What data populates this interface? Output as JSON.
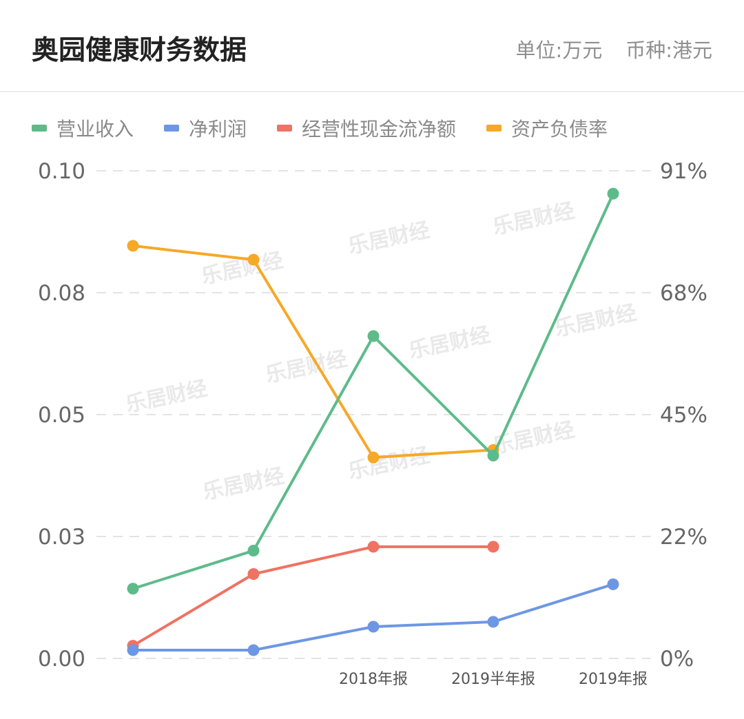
{
  "header": {
    "title": "奥园健康财务数据",
    "unit": "单位:万元",
    "currency": "币种:港元"
  },
  "legend": [
    {
      "label": "营业收入",
      "color": "#5dbb8a"
    },
    {
      "label": "净利润",
      "color": "#6d97e4"
    },
    {
      "label": "经营性现金流净额",
      "color": "#ef7263"
    },
    {
      "label": "资产负债率",
      "color": "#f6a827"
    }
  ],
  "watermark_text": "乐居财经",
  "chart_data": {
    "type": "line",
    "categories": [
      "",
      "",
      "2018年报",
      "2019半年报",
      "2019年报"
    ],
    "left_axis": {
      "ticks": [
        "0.10",
        "0.08",
        "0.05",
        "0.03",
        "0.00"
      ],
      "ylim": [
        0,
        0.1
      ]
    },
    "right_axis": {
      "ticks": [
        "91%",
        "68%",
        "45%",
        "22%",
        "0%"
      ],
      "ylim": [
        0,
        91
      ]
    },
    "grid": "horizontal-dashed",
    "series": [
      {
        "name": "营业收入",
        "color": "#5dbb8a",
        "axis": "left",
        "values": [
          0.0143,
          0.0221,
          0.0661,
          0.0416,
          0.0953
        ]
      },
      {
        "name": "净利润",
        "color": "#6d97e4",
        "axis": "left",
        "values": [
          0.0017,
          0.0017,
          0.0065,
          0.0075,
          0.0152
        ]
      },
      {
        "name": "经营性现金流净额",
        "color": "#ef7263",
        "axis": "left",
        "values": [
          0.0026,
          0.0173,
          0.0229,
          0.0229,
          null
        ]
      },
      {
        "name": "资产负债率",
        "color": "#f6a827",
        "axis": "right",
        "values": [
          77,
          74.4,
          37.5,
          38.9,
          null
        ]
      }
    ]
  }
}
